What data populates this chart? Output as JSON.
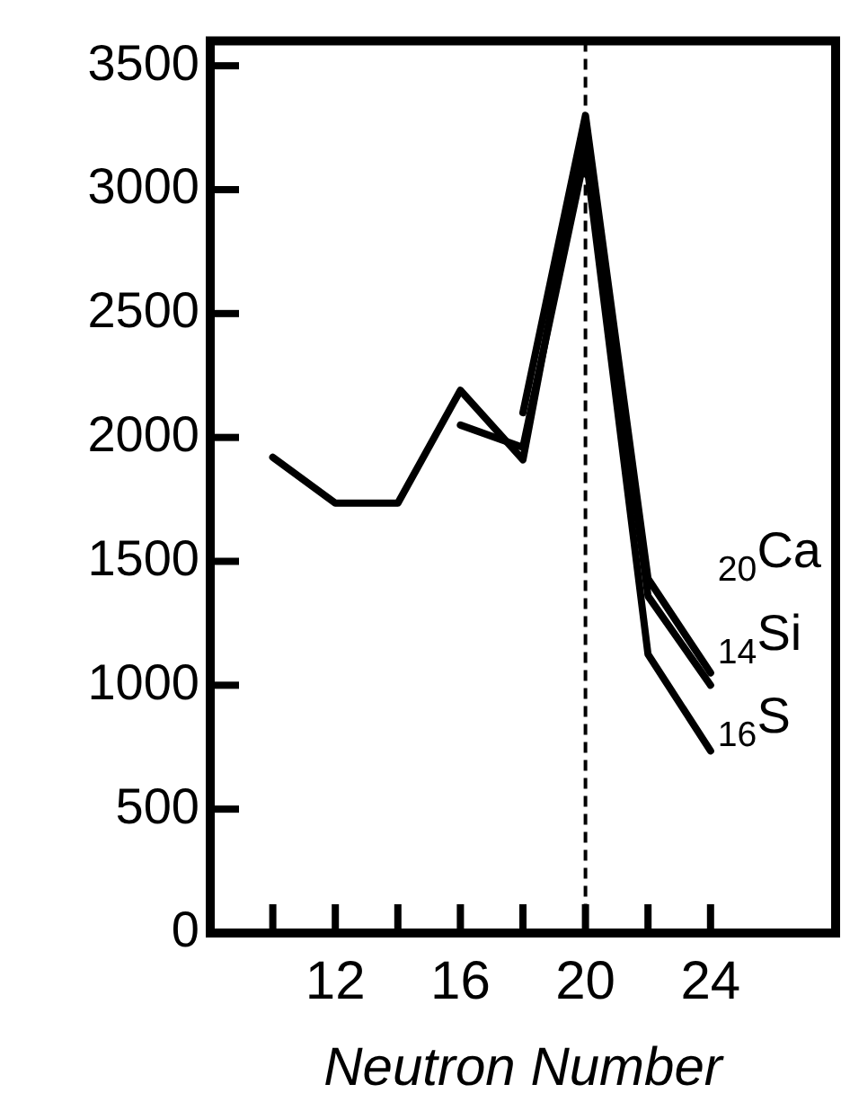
{
  "chart_data": {
    "type": "line",
    "xlabel": "Neutron Number",
    "xlim": [
      8,
      28
    ],
    "xticks": [
      {
        "value": 10,
        "label": null
      },
      12,
      {
        "value": 14,
        "label": null
      },
      16,
      {
        "value": 18,
        "label": null
      },
      20,
      {
        "value": 22,
        "label": null
      },
      24
    ],
    "ylim": [
      0,
      3600
    ],
    "yticks": [
      0,
      500,
      1000,
      1500,
      2000,
      2500,
      3000,
      3500
    ],
    "grid": false,
    "legend": false,
    "marker": "none",
    "line_style": "solid",
    "series": [
      {
        "name": "$_{20}$Ca",
        "color": "#000000",
        "x": [
          18,
          20,
          22,
          24
        ],
        "values": [
          2100,
          3300,
          1430,
          1050
        ]
      },
      {
        "name": "$_{14}$Si",
        "color": "#000000",
        "x": [
          10,
          12,
          14,
          16,
          18,
          20,
          22,
          24
        ],
        "values": [
          1920,
          1735,
          1735,
          2190,
          1910,
          3250,
          1360,
          1000
        ]
      },
      {
        "name": "$_{16}$S",
        "color": "#000000",
        "x": [
          16,
          18,
          20,
          22,
          24
        ],
        "values": [
          2050,
          1960,
          3150,
          1125,
          735
        ]
      }
    ],
    "ref_lines": [
      {
        "axis": "x",
        "value": 20,
        "color": "#000000",
        "line_style": "dashed"
      }
    ]
  }
}
